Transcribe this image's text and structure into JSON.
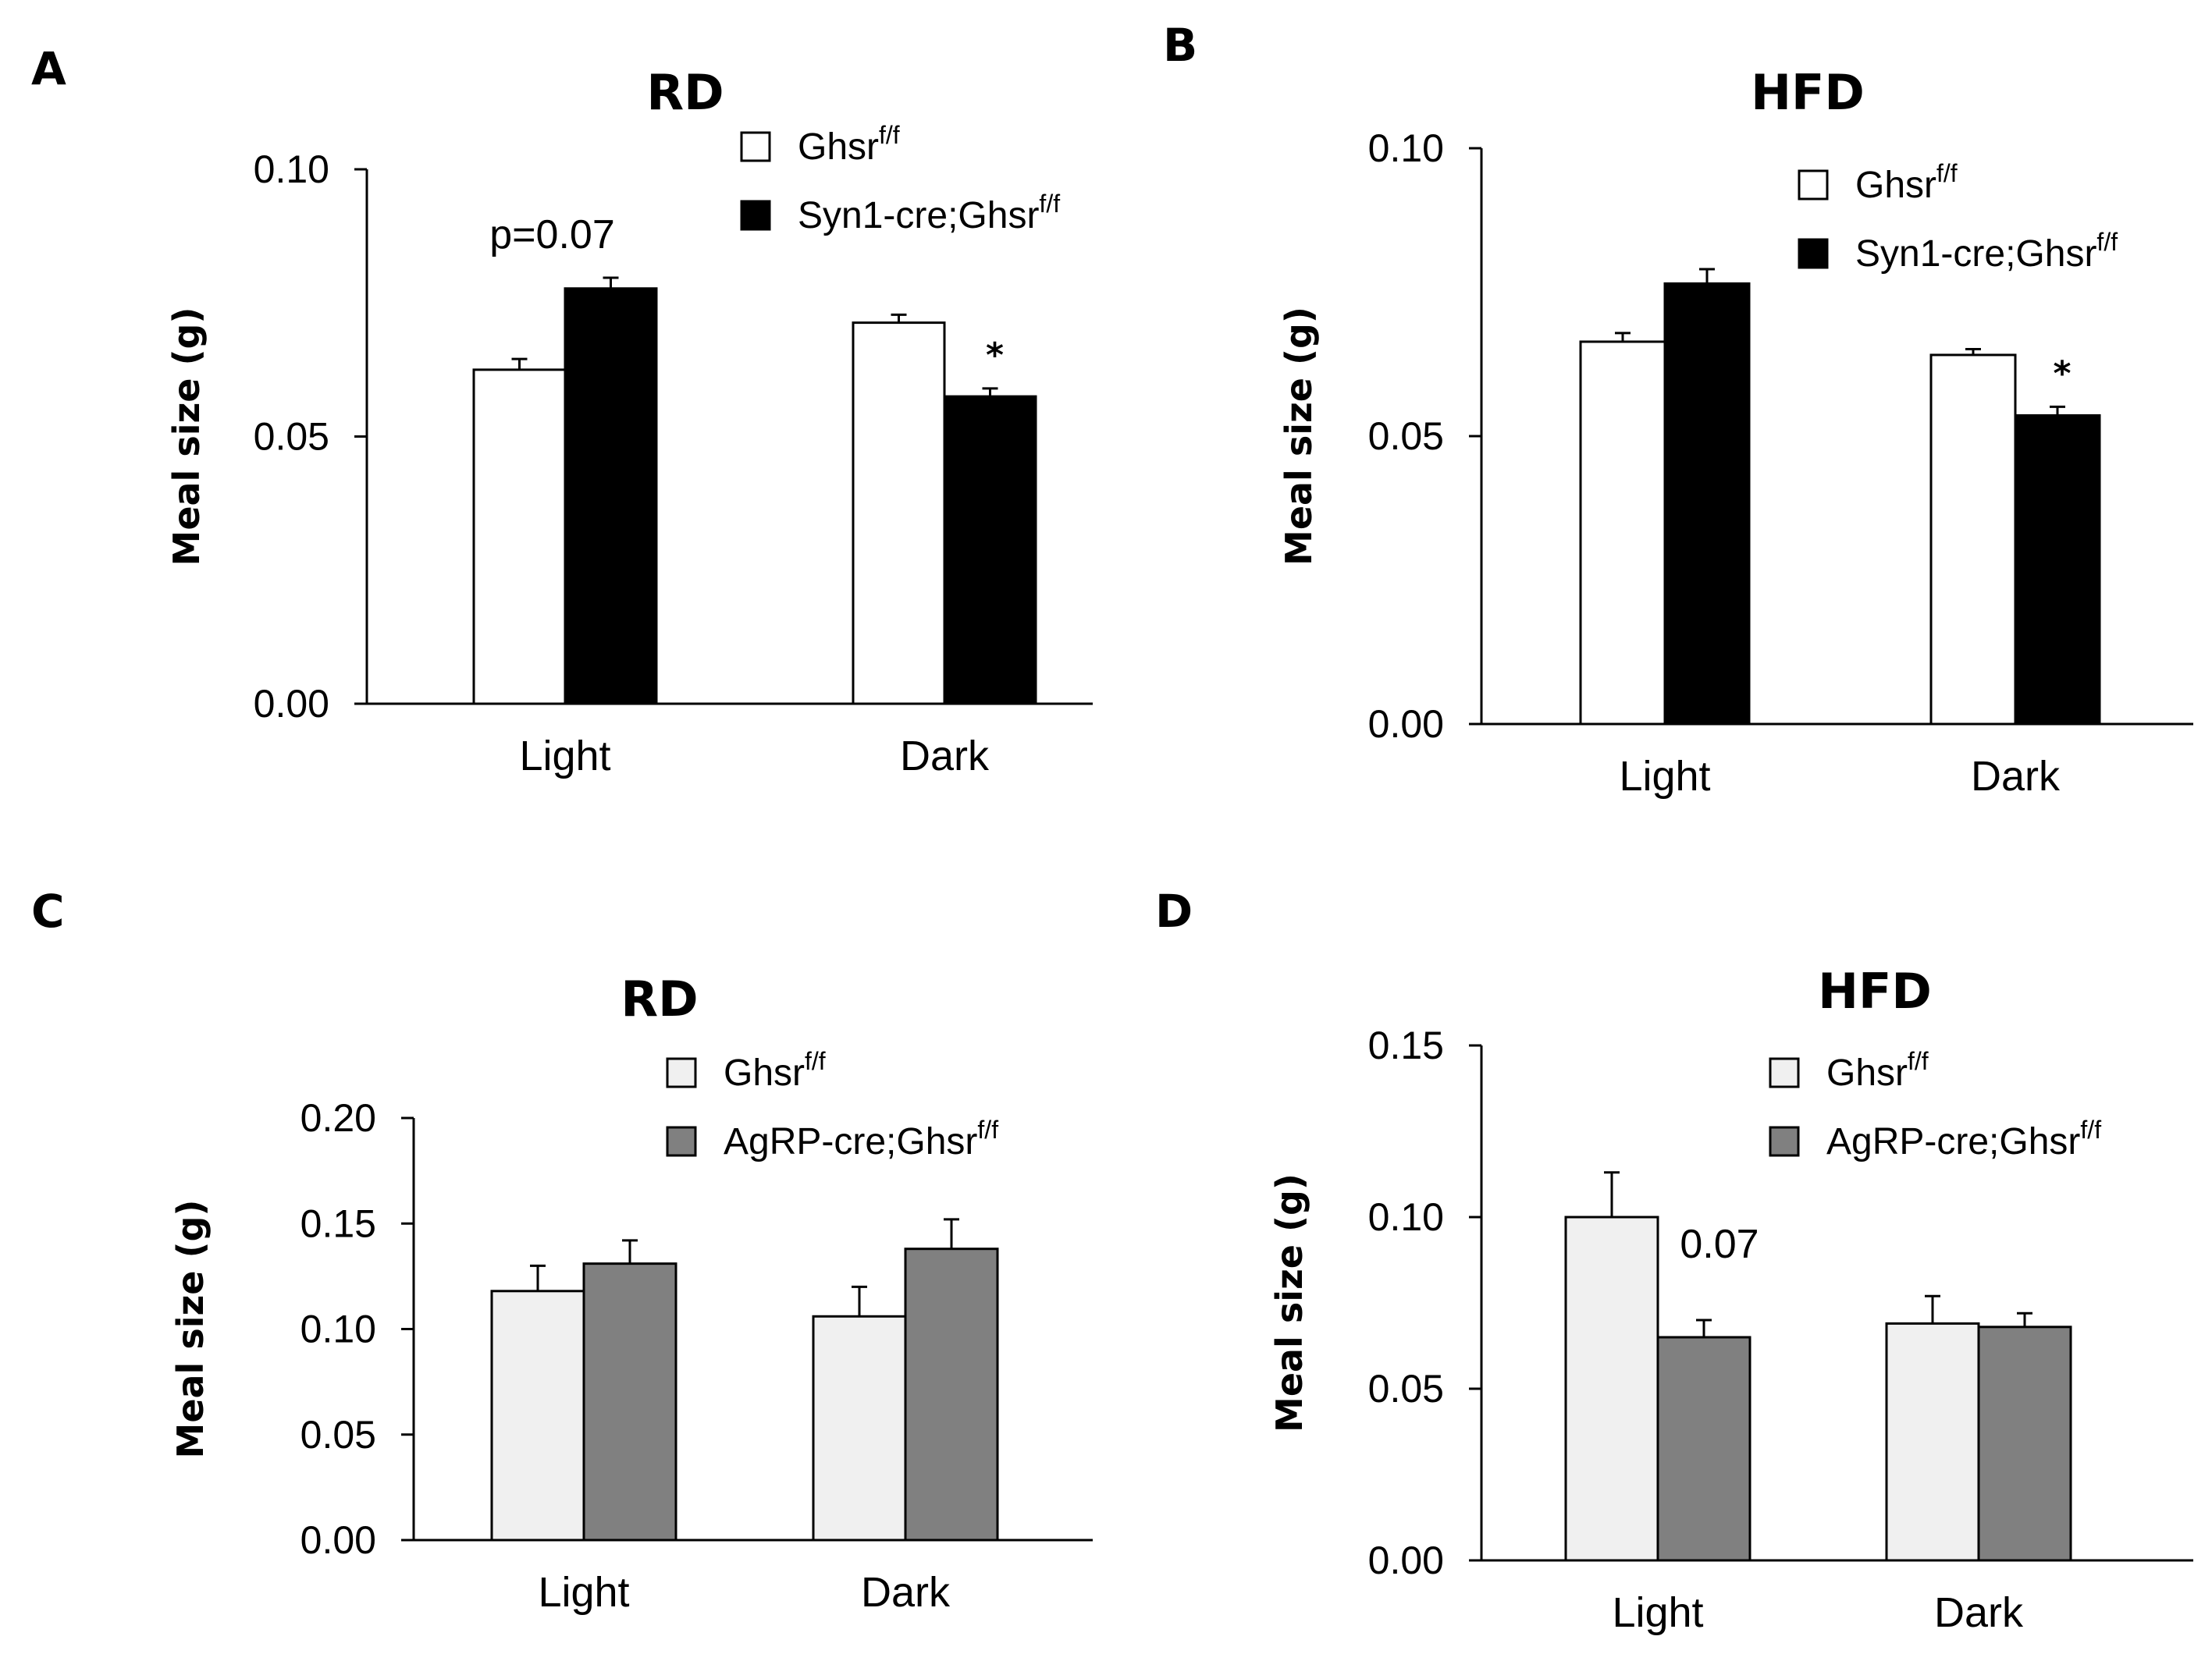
{
  "chart_data": [
    {
      "panel": "A",
      "type": "bar",
      "title": "RD",
      "ylabel": "Meal size (g)",
      "xlabel": "",
      "categories": [
        "Light",
        "Dark"
      ],
      "ylim": [
        0,
        0.1
      ],
      "yticks": [
        "0.00",
        "0.05",
        "0.10"
      ],
      "series": [
        {
          "name": "Ghsr",
          "sup": "f/f",
          "color": "#ffffff",
          "values": [
            0.0625,
            0.0713
          ],
          "errors": [
            0.002,
            0.0015
          ]
        },
        {
          "name": "Syn1-cre;Ghsr",
          "sup": "f/f",
          "color": "#000000",
          "values": [
            0.0777,
            0.0575
          ],
          "errors": [
            0.002,
            0.0015
          ]
        }
      ],
      "annotations": [
        {
          "text": "p=0.07",
          "category": 0,
          "series": 1,
          "style": "text"
        },
        {
          "text": "*",
          "category": 1,
          "series": 1,
          "style": "star"
        }
      ]
    },
    {
      "panel": "B",
      "type": "bar",
      "title": "HFD",
      "ylabel": "Meal size (g)",
      "xlabel": "",
      "categories": [
        "Light",
        "Dark"
      ],
      "ylim": [
        0,
        0.1
      ],
      "yticks": [
        "0.00",
        "0.05",
        "0.10"
      ],
      "series": [
        {
          "name": "Ghsr",
          "sup": "f/f",
          "color": "#ffffff",
          "values": [
            0.0664,
            0.0641
          ],
          "errors": [
            0.0015,
            0.001
          ]
        },
        {
          "name": "Syn1-cre;Ghsr",
          "sup": "f/f",
          "color": "#000000",
          "values": [
            0.0765,
            0.0536
          ],
          "errors": [
            0.0025,
            0.0015
          ]
        }
      ],
      "annotations": [
        {
          "text": "*",
          "category": 1,
          "series": 1,
          "style": "star"
        }
      ]
    },
    {
      "panel": "C",
      "type": "bar",
      "title": "RD",
      "ylabel": "Meal size (g)",
      "xlabel": "",
      "categories": [
        "Light",
        "Dark"
      ],
      "ylim": [
        0,
        0.2
      ],
      "yticks": [
        "0.00",
        "0.05",
        "0.10",
        "0.15",
        "0.20"
      ],
      "series": [
        {
          "name": "Ghsr",
          "sup": "f/f",
          "color": "#f0f0f0",
          "values": [
            0.118,
            0.106
          ],
          "errors": [
            0.012,
            0.014
          ]
        },
        {
          "name": "AgRP-cre;Ghsr",
          "sup": "f/f",
          "color": "#808080",
          "values": [
            0.131,
            0.138
          ],
          "errors": [
            0.011,
            0.014
          ]
        }
      ],
      "annotations": []
    },
    {
      "panel": "D",
      "type": "bar",
      "title": "HFD",
      "ylabel": "Meal size (g)",
      "xlabel": "",
      "categories": [
        "Light",
        "Dark"
      ],
      "ylim": [
        0,
        0.15
      ],
      "yticks": [
        "0.00",
        "0.05",
        "0.10",
        "0.15"
      ],
      "series": [
        {
          "name": "Ghsr",
          "sup": "f/f",
          "color": "#f0f0f0",
          "values": [
            0.1,
            0.069
          ],
          "errors": [
            0.013,
            0.008
          ]
        },
        {
          "name": "AgRP-cre;Ghsr",
          "sup": "f/f",
          "color": "#808080",
          "values": [
            0.065,
            0.068
          ],
          "errors": [
            0.005,
            0.004
          ]
        }
      ],
      "annotations": [
        {
          "text": "0.07",
          "category": 0,
          "series": 1,
          "style": "text"
        }
      ]
    }
  ]
}
